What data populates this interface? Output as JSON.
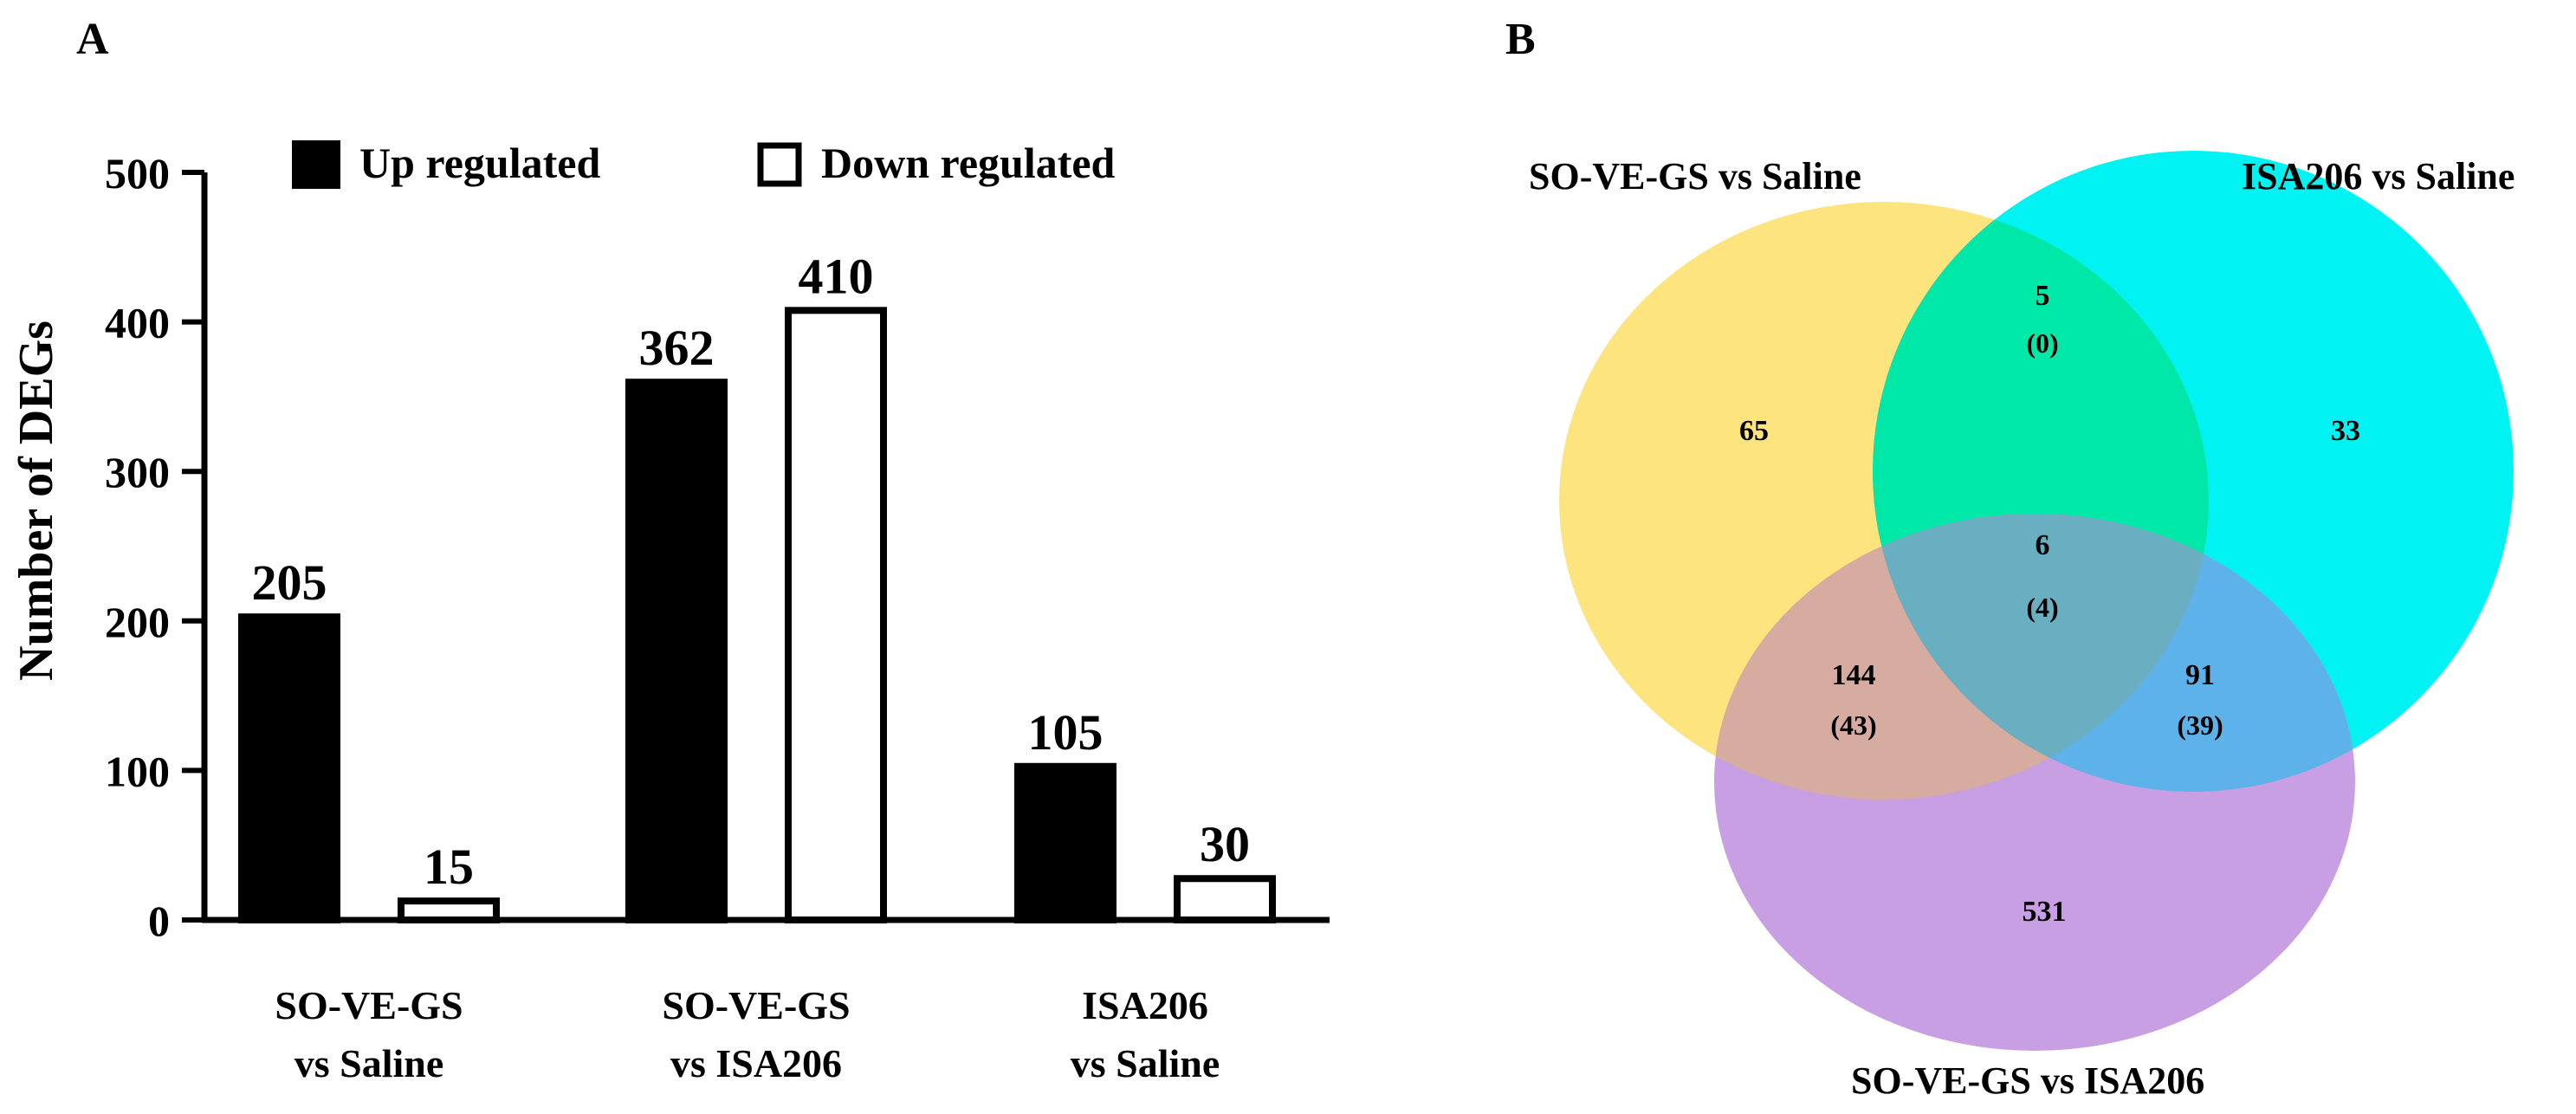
{
  "panels": {
    "a": "A",
    "b": "B"
  },
  "chart_data": [
    {
      "type": "bar",
      "title": "",
      "xlabel": "",
      "ylabel": "Number of DEGs",
      "ylim": [
        0,
        500
      ],
      "yticks": [
        0,
        100,
        200,
        300,
        400,
        500
      ],
      "categories": [
        [
          "SO-VE-GS",
          "vs Saline"
        ],
        [
          "SO-VE-GS",
          "vs ISA206"
        ],
        [
          "ISA206",
          "vs Saline"
        ]
      ],
      "series": [
        {
          "name": "Up regulated",
          "fill": "#000000",
          "values": [
            205,
            362,
            105
          ]
        },
        {
          "name": "Down regulated",
          "fill": "#ffffff",
          "values": [
            15,
            410,
            30
          ]
        }
      ],
      "legend_position": "top"
    },
    {
      "type": "venn",
      "sets": [
        {
          "name": "SO-VE-GS vs Saline",
          "color": "#fde47f"
        },
        {
          "name": "ISA206 vs Saline",
          "color": "#00f2f2"
        },
        {
          "name": "SO-VE-GS vs ISA206",
          "color": "#c89fe2"
        }
      ],
      "regions": {
        "saline_only": {
          "count": "65"
        },
        "isa_saline_only": {
          "count": "33"
        },
        "isa206_only": {
          "count": "531"
        },
        "saline_and_isa_saline": {
          "count": "5",
          "paren": "(0)"
        },
        "saline_and_isa206": {
          "count": "144",
          "paren": "(43)"
        },
        "isa_saline_and_isa206": {
          "count": "91",
          "paren": "(39)"
        },
        "all_three": {
          "count": "6",
          "paren": "(4)"
        }
      }
    }
  ]
}
